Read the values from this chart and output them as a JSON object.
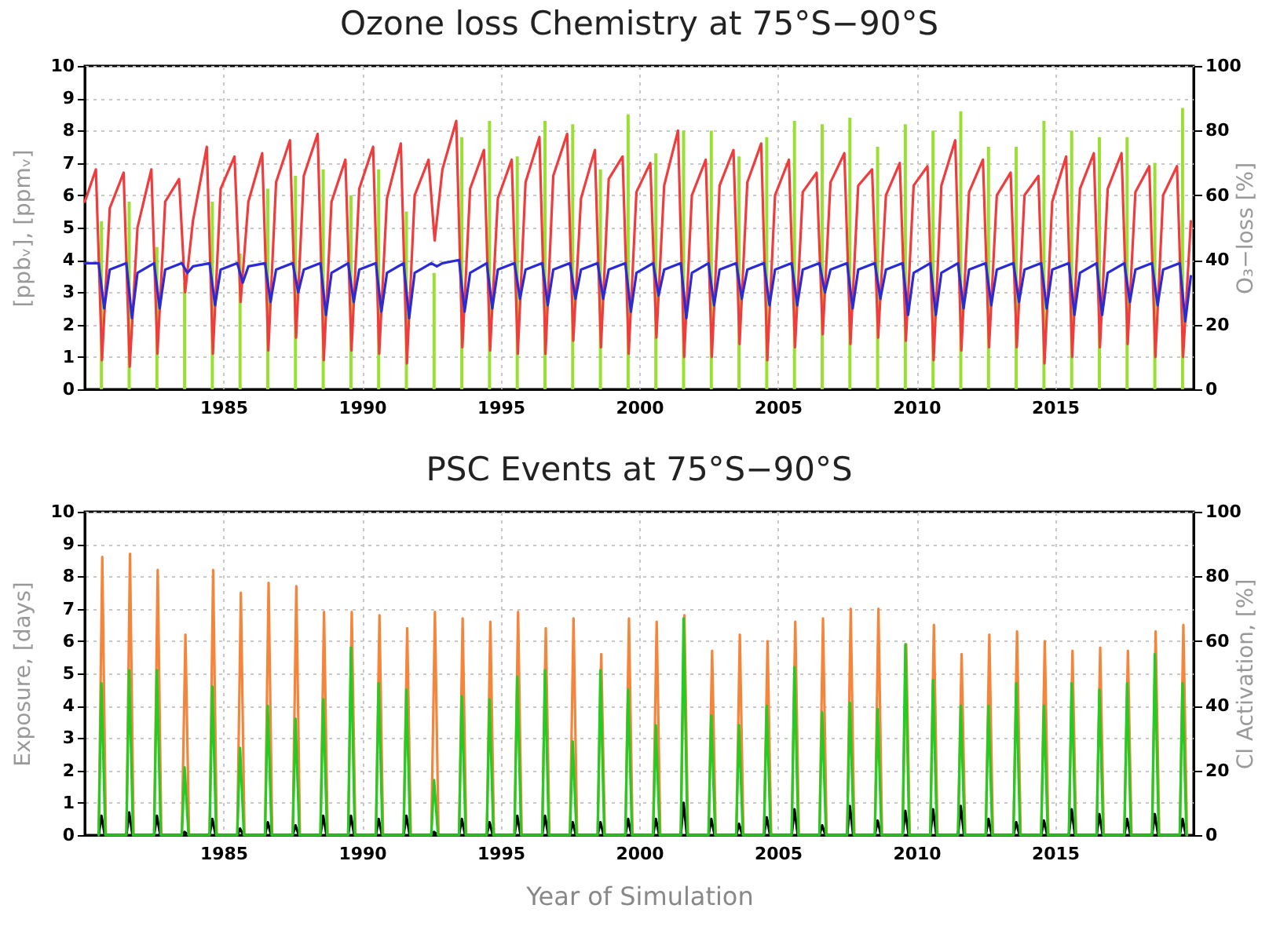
{
  "chart_data": [
    {
      "type": "line",
      "title": "Ozone loss Chemistry at 75°S−90°S",
      "ylabel": "[ppbᵥ], [ppmᵥ]",
      "y2label": "O₃−loss [%]",
      "xlim": [
        1980,
        2020
      ],
      "xticks": [
        1985,
        1990,
        1995,
        2000,
        2005,
        2010,
        2015
      ],
      "ylim": [
        0,
        10
      ],
      "yticks": [
        0,
        1,
        2,
        3,
        4,
        5,
        6,
        7,
        8,
        9,
        10
      ],
      "y2lim": [
        0,
        100
      ],
      "y2ticks": [
        0,
        20,
        40,
        60,
        80,
        100
      ],
      "grid": true,
      "series": [
        {
          "type": "bar",
          "axis": "y2",
          "color": "#99e033",
          "x": [
            1980.6,
            1981.6,
            1982.6,
            1983.6,
            1984.6,
            1985.6,
            1986.6,
            1987.6,
            1988.6,
            1989.6,
            1990.6,
            1991.6,
            1992.6,
            1993.6,
            1994.6,
            1995.6,
            1996.6,
            1997.6,
            1998.6,
            1999.6,
            2000.6,
            2001.6,
            2002.6,
            2003.6,
            2004.6,
            2005.6,
            2006.6,
            2007.6,
            2008.6,
            2009.6,
            2010.6,
            2011.6,
            2012.6,
            2013.6,
            2014.6,
            2015.6,
            2016.6,
            2017.6,
            2018.6,
            2019.6
          ],
          "values": [
            52,
            58,
            44,
            33,
            58,
            42,
            62,
            66,
            68,
            60,
            68,
            55,
            36,
            78,
            83,
            72,
            83,
            82,
            68,
            85,
            73,
            80,
            80,
            72,
            78,
            83,
            82,
            84,
            75,
            82,
            80,
            86,
            75,
            75,
            83,
            80,
            78,
            78,
            70,
            87
          ]
        },
        {
          "color": "#f03c3c",
          "x": [
            1980,
            1980.4,
            1980.62,
            1980.9,
            1981.4,
            1981.62,
            1981.9,
            1982.4,
            1982.62,
            1982.9,
            1983.4,
            1983.62,
            1983.9,
            1984.4,
            1984.62,
            1984.9,
            1985.4,
            1985.62,
            1985.9,
            1986.4,
            1986.62,
            1986.9,
            1987.4,
            1987.62,
            1987.9,
            1988.4,
            1988.62,
            1988.9,
            1989.4,
            1989.62,
            1989.9,
            1990.4,
            1990.62,
            1990.9,
            1991.4,
            1991.62,
            1991.9,
            1992.4,
            1992.62,
            1992.9,
            1993.4,
            1993.62,
            1993.9,
            1994.4,
            1994.62,
            1994.9,
            1995.4,
            1995.62,
            1995.9,
            1996.4,
            1996.62,
            1996.9,
            1997.4,
            1997.62,
            1997.9,
            1998.4,
            1998.62,
            1998.9,
            1999.4,
            1999.62,
            1999.9,
            2000.4,
            2000.62,
            2000.9,
            2001.4,
            2001.62,
            2001.9,
            2002.4,
            2002.62,
            2002.9,
            2003.4,
            2003.62,
            2003.9,
            2004.4,
            2004.62,
            2004.9,
            2005.4,
            2005.62,
            2005.9,
            2006.4,
            2006.62,
            2006.9,
            2007.4,
            2007.62,
            2007.9,
            2008.4,
            2008.62,
            2008.9,
            2009.4,
            2009.62,
            2009.9,
            2010.4,
            2010.62,
            2010.9,
            2011.4,
            2011.62,
            2011.9,
            2012.4,
            2012.62,
            2012.9,
            2013.4,
            2013.62,
            2013.9,
            2014.4,
            2014.62,
            2014.9,
            2015.4,
            2015.62,
            2015.9,
            2016.4,
            2016.62,
            2016.9,
            2017.4,
            2017.62,
            2017.9,
            2018.4,
            2018.62,
            2018.9,
            2019.4,
            2019.62,
            2019.9
          ],
          "values": [
            5.8,
            6.8,
            0.9,
            5.6,
            6.7,
            0.7,
            5.0,
            6.8,
            1.1,
            5.8,
            6.5,
            3.0,
            5.2,
            7.5,
            1.1,
            6.2,
            7.2,
            2.7,
            5.8,
            7.3,
            1.2,
            6.4,
            7.7,
            1.6,
            6.6,
            7.9,
            0.9,
            5.8,
            7.1,
            1.2,
            6.2,
            7.5,
            1.1,
            5.9,
            7.6,
            0.8,
            6.0,
            7.1,
            4.6,
            6.8,
            8.3,
            1.3,
            6.2,
            7.4,
            1.2,
            5.9,
            7.1,
            1.1,
            6.4,
            7.8,
            1.1,
            6.6,
            7.9,
            1.5,
            5.9,
            7.4,
            1.3,
            6.5,
            7.2,
            1.1,
            6.1,
            7.0,
            1.6,
            6.3,
            8.0,
            1.0,
            6.0,
            7.1,
            1.0,
            6.3,
            7.4,
            1.4,
            6.4,
            7.6,
            0.9,
            6.0,
            7.1,
            1.3,
            6.1,
            6.7,
            1.7,
            6.4,
            7.3,
            1.4,
            6.3,
            6.8,
            1.6,
            6.0,
            7.0,
            1.5,
            6.3,
            6.9,
            0.9,
            6.3,
            7.7,
            1.2,
            6.1,
            7.1,
            1.3,
            6.0,
            6.7,
            1.3,
            6.0,
            6.6,
            0.8,
            5.8,
            7.2,
            1.0,
            6.2,
            7.3,
            1.3,
            6.2,
            7.3,
            1.4,
            6.1,
            6.9,
            1.0,
            6.0,
            6.9,
            1.0,
            5.2
          ]
        },
        {
          "color": "#2a2ad6",
          "x": [
            1980,
            1980.5,
            1980.7,
            1980.9,
            1981.5,
            1981.7,
            1981.9,
            1982.5,
            1982.7,
            1982.9,
            1983.5,
            1983.7,
            1983.9,
            1984.5,
            1984.7,
            1984.9,
            1985.5,
            1985.7,
            1985.9,
            1986.5,
            1986.7,
            1986.9,
            1987.5,
            1987.7,
            1987.9,
            1988.5,
            1988.7,
            1988.9,
            1989.5,
            1989.7,
            1989.9,
            1990.5,
            1990.7,
            1990.9,
            1991.5,
            1991.7,
            1991.9,
            1992.5,
            1992.7,
            1992.9,
            1993.5,
            1993.7,
            1993.9,
            1994.5,
            1994.7,
            1994.9,
            1995.5,
            1995.7,
            1995.9,
            1996.5,
            1996.7,
            1996.9,
            1997.5,
            1997.7,
            1997.9,
            1998.5,
            1998.7,
            1998.9,
            1999.5,
            1999.7,
            1999.9,
            2000.5,
            2000.7,
            2000.9,
            2001.5,
            2001.7,
            2001.9,
            2002.5,
            2002.7,
            2002.9,
            2003.5,
            2003.7,
            2003.9,
            2004.5,
            2004.7,
            2004.9,
            2005.5,
            2005.7,
            2005.9,
            2006.5,
            2006.7,
            2006.9,
            2007.5,
            2007.7,
            2007.9,
            2008.5,
            2008.7,
            2008.9,
            2009.5,
            2009.7,
            2009.9,
            2010.5,
            2010.7,
            2010.9,
            2011.5,
            2011.7,
            2011.9,
            2012.5,
            2012.7,
            2012.9,
            2013.5,
            2013.7,
            2013.9,
            2014.5,
            2014.7,
            2014.9,
            2015.5,
            2015.7,
            2015.9,
            2016.5,
            2016.7,
            2016.9,
            2017.5,
            2017.7,
            2017.9,
            2018.5,
            2018.7,
            2018.9,
            2019.5,
            2019.7,
            2019.9
          ],
          "values": [
            3.9,
            3.9,
            2.5,
            3.7,
            3.9,
            2.2,
            3.6,
            3.9,
            2.5,
            3.7,
            3.9,
            3.6,
            3.8,
            3.9,
            2.6,
            3.7,
            3.9,
            3.3,
            3.8,
            3.9,
            2.7,
            3.7,
            3.9,
            3.0,
            3.7,
            3.9,
            2.3,
            3.6,
            3.9,
            2.7,
            3.7,
            3.9,
            2.4,
            3.6,
            3.9,
            2.2,
            3.6,
            3.9,
            3.8,
            3.9,
            4.0,
            2.4,
            3.6,
            3.9,
            2.5,
            3.7,
            3.9,
            2.8,
            3.7,
            3.9,
            2.6,
            3.7,
            3.9,
            2.8,
            3.7,
            3.9,
            2.8,
            3.7,
            3.9,
            2.4,
            3.6,
            3.9,
            2.9,
            3.7,
            3.9,
            2.2,
            3.6,
            3.9,
            2.6,
            3.7,
            3.9,
            2.8,
            3.7,
            3.9,
            2.6,
            3.7,
            3.9,
            2.6,
            3.7,
            3.9,
            3.0,
            3.7,
            3.9,
            2.5,
            3.7,
            3.9,
            2.8,
            3.7,
            3.9,
            2.3,
            3.6,
            3.9,
            2.3,
            3.6,
            3.9,
            2.5,
            3.7,
            3.9,
            2.6,
            3.7,
            3.9,
            2.7,
            3.7,
            3.9,
            2.5,
            3.7,
            3.9,
            2.3,
            3.6,
            3.9,
            2.3,
            3.6,
            3.9,
            2.7,
            3.7,
            3.9,
            2.6,
            3.7,
            3.9,
            2.1,
            3.5
          ]
        }
      ]
    },
    {
      "type": "line",
      "title": "PSC Events at 75°S−90°S",
      "xlabel": "Year of Simulation",
      "ylabel": "Exposure, [days]",
      "y2label": "Cl Activation, [%]",
      "xlim": [
        1980,
        2020
      ],
      "xticks": [
        1985,
        1990,
        1995,
        2000,
        2005,
        2010,
        2015
      ],
      "ylim": [
        0,
        10
      ],
      "yticks": [
        0,
        1,
        2,
        3,
        4,
        5,
        6,
        7,
        8,
        9,
        10
      ],
      "y2lim": [
        0,
        100
      ],
      "y2ticks": [
        0,
        20,
        40,
        60,
        80,
        100
      ],
      "grid": true,
      "series": [
        {
          "color": "#f5853a",
          "x": [
            1980.5,
            1980.63,
            1980.76,
            1981.5,
            1981.63,
            1981.76,
            1982.5,
            1982.63,
            1982.76,
            1983.5,
            1983.63,
            1983.76,
            1984.5,
            1984.63,
            1984.76,
            1985.5,
            1985.63,
            1985.76,
            1986.5,
            1986.63,
            1986.76,
            1987.5,
            1987.63,
            1987.76,
            1988.5,
            1988.63,
            1988.76,
            1989.5,
            1989.63,
            1989.76,
            1990.5,
            1990.63,
            1990.76,
            1991.5,
            1991.63,
            1991.76,
            1992.5,
            1992.63,
            1992.76,
            1993.5,
            1993.63,
            1993.76,
            1994.5,
            1994.63,
            1994.76,
            1995.5,
            1995.63,
            1995.76,
            1996.5,
            1996.63,
            1996.76,
            1997.5,
            1997.63,
            1997.76,
            1998.5,
            1998.63,
            1998.76,
            1999.5,
            1999.63,
            1999.76,
            2000.5,
            2000.63,
            2000.76,
            2001.5,
            2001.63,
            2001.76,
            2002.5,
            2002.63,
            2002.76,
            2003.5,
            2003.63,
            2003.76,
            2004.5,
            2004.63,
            2004.76,
            2005.5,
            2005.63,
            2005.76,
            2006.5,
            2006.63,
            2006.76,
            2007.5,
            2007.63,
            2007.76,
            2008.5,
            2008.63,
            2008.76,
            2009.5,
            2009.63,
            2009.76,
            2010.5,
            2010.63,
            2010.76,
            2011.5,
            2011.63,
            2011.76,
            2012.5,
            2012.63,
            2012.76,
            2013.5,
            2013.63,
            2013.76,
            2014.5,
            2014.63,
            2014.76,
            2015.5,
            2015.63,
            2015.76,
            2016.5,
            2016.63,
            2016.76,
            2017.5,
            2017.63,
            2017.76,
            2018.5,
            2018.63,
            2018.76,
            2019.5,
            2019.63,
            2019.76
          ],
          "values": [
            0,
            8.6,
            0,
            0,
            8.7,
            0,
            0,
            8.2,
            0,
            0,
            6.2,
            0,
            0,
            8.2,
            0,
            0,
            7.5,
            0,
            0,
            7.8,
            0,
            0,
            7.7,
            0,
            0,
            6.9,
            0,
            0,
            6.9,
            0,
            0,
            6.8,
            0,
            0,
            6.4,
            0,
            0,
            6.9,
            0,
            0,
            6.7,
            0,
            0,
            6.6,
            0,
            0,
            6.9,
            0,
            0,
            6.4,
            0,
            0,
            6.7,
            0,
            0,
            5.6,
            0,
            0,
            6.7,
            0,
            0,
            6.6,
            0,
            0,
            6.8,
            0,
            0,
            5.7,
            0,
            0,
            6.2,
            0,
            0,
            6.0,
            0,
            0,
            6.6,
            0,
            0,
            6.7,
            0,
            0,
            7.0,
            0,
            0,
            7.0,
            0,
            0,
            5.9,
            0,
            0,
            6.5,
            0,
            0,
            5.6,
            0,
            0,
            6.2,
            0,
            0,
            6.3,
            0,
            0,
            6.0,
            0,
            0,
            5.7,
            0,
            0,
            5.8,
            0,
            0,
            5.7,
            0,
            0,
            6.3,
            0,
            0,
            6.5,
            0
          ]
        },
        {
          "axis": "y2",
          "color": "#22cc22",
          "x": [
            1980.5,
            1980.6,
            1980.74,
            1981.5,
            1981.6,
            1981.74,
            1982.5,
            1982.6,
            1982.74,
            1983.5,
            1983.6,
            1983.74,
            1984.5,
            1984.6,
            1984.74,
            1985.5,
            1985.6,
            1985.74,
            1986.5,
            1986.6,
            1986.74,
            1987.5,
            1987.6,
            1987.74,
            1988.5,
            1988.6,
            1988.74,
            1989.5,
            1989.6,
            1989.74,
            1990.5,
            1990.6,
            1990.74,
            1991.5,
            1991.6,
            1991.74,
            1992.5,
            1992.6,
            1992.74,
            1993.5,
            1993.6,
            1993.74,
            1994.5,
            1994.6,
            1994.74,
            1995.5,
            1995.6,
            1995.74,
            1996.5,
            1996.6,
            1996.74,
            1997.5,
            1997.6,
            1997.74,
            1998.5,
            1998.6,
            1998.74,
            1999.5,
            1999.6,
            1999.74,
            2000.5,
            2000.6,
            2000.74,
            2001.5,
            2001.6,
            2001.74,
            2002.5,
            2002.6,
            2002.74,
            2003.5,
            2003.6,
            2003.74,
            2004.5,
            2004.6,
            2004.74,
            2005.5,
            2005.6,
            2005.74,
            2006.5,
            2006.6,
            2006.74,
            2007.5,
            2007.6,
            2007.74,
            2008.5,
            2008.6,
            2008.74,
            2009.5,
            2009.6,
            2009.74,
            2010.5,
            2010.6,
            2010.74,
            2011.5,
            2011.6,
            2011.74,
            2012.5,
            2012.6,
            2012.74,
            2013.5,
            2013.6,
            2013.74,
            2014.5,
            2014.6,
            2014.74,
            2015.5,
            2015.6,
            2015.74,
            2016.5,
            2016.6,
            2016.74,
            2017.5,
            2017.6,
            2017.74,
            2018.5,
            2018.6,
            2018.74,
            2019.5,
            2019.6,
            2019.74
          ],
          "values": [
            0,
            47,
            0,
            0,
            51,
            0,
            0,
            51,
            0,
            0,
            21,
            0,
            0,
            46,
            0,
            0,
            27,
            0,
            0,
            40,
            0,
            0,
            36,
            0,
            0,
            42,
            0,
            0,
            58,
            0,
            0,
            47,
            0,
            0,
            45,
            0,
            0,
            17,
            0,
            0,
            43,
            0,
            0,
            42,
            0,
            0,
            49,
            0,
            0,
            51,
            0,
            0,
            29,
            0,
            0,
            51,
            0,
            0,
            45,
            0,
            0,
            34,
            0,
            0,
            67,
            0,
            0,
            37,
            0,
            0,
            34,
            0,
            0,
            40,
            0,
            0,
            52,
            0,
            0,
            38,
            0,
            0,
            41,
            0,
            0,
            39,
            0,
            0,
            59,
            0,
            0,
            48,
            0,
            0,
            40,
            0,
            0,
            40,
            0,
            0,
            47,
            0,
            0,
            40,
            0,
            0,
            47,
            0,
            0,
            45,
            0,
            0,
            47,
            0,
            0,
            56,
            0,
            0,
            47,
            0
          ]
        },
        {
          "color": "#000000",
          "x": [
            1980.5,
            1980.6,
            1980.72,
            1981.5,
            1981.6,
            1981.72,
            1982.5,
            1982.6,
            1982.72,
            1983.5,
            1983.6,
            1983.72,
            1984.5,
            1984.6,
            1984.72,
            1985.5,
            1985.6,
            1985.72,
            1986.5,
            1986.6,
            1986.72,
            1987.5,
            1987.6,
            1987.72,
            1988.5,
            1988.6,
            1988.72,
            1989.5,
            1989.6,
            1989.72,
            1990.5,
            1990.6,
            1990.72,
            1991.5,
            1991.6,
            1991.72,
            1992.5,
            1992.6,
            1992.72,
            1993.5,
            1993.6,
            1993.72,
            1994.5,
            1994.6,
            1994.72,
            1995.5,
            1995.6,
            1995.72,
            1996.5,
            1996.6,
            1996.72,
            1997.5,
            1997.6,
            1997.72,
            1998.5,
            1998.6,
            1998.72,
            1999.5,
            1999.6,
            1999.72,
            2000.5,
            2000.6,
            2000.72,
            2001.5,
            2001.6,
            2001.72,
            2002.5,
            2002.6,
            2002.72,
            2003.5,
            2003.6,
            2003.72,
            2004.5,
            2004.6,
            2004.72,
            2005.5,
            2005.6,
            2005.72,
            2006.5,
            2006.6,
            2006.72,
            2007.5,
            2007.6,
            2007.72,
            2008.5,
            2008.6,
            2008.72,
            2009.5,
            2009.6,
            2009.72,
            2010.5,
            2010.6,
            2010.72,
            2011.5,
            2011.6,
            2011.72,
            2012.5,
            2012.6,
            2012.72,
            2013.5,
            2013.6,
            2013.72,
            2014.5,
            2014.6,
            2014.72,
            2015.5,
            2015.6,
            2015.72,
            2016.5,
            2016.6,
            2016.72,
            2017.5,
            2017.6,
            2017.72,
            2018.5,
            2018.6,
            2018.72,
            2019.5,
            2019.6,
            2019.72
          ],
          "values": [
            0,
            0.6,
            0,
            0,
            0.7,
            0,
            0,
            0.6,
            0,
            0,
            0.1,
            0,
            0,
            0.5,
            0,
            0,
            0.2,
            0,
            0,
            0.4,
            0,
            0,
            0.3,
            0,
            0,
            0.6,
            0,
            0,
            0.6,
            0,
            0,
            0.5,
            0,
            0,
            0.6,
            0,
            0,
            0.1,
            0,
            0,
            0.5,
            0,
            0,
            0.4,
            0,
            0,
            0.6,
            0,
            0,
            0.6,
            0,
            0,
            0.4,
            0,
            0,
            0.4,
            0,
            0,
            0.5,
            0,
            0,
            0.5,
            0,
            0,
            1.0,
            0,
            0,
            0.5,
            0,
            0,
            0.35,
            0,
            0,
            0.55,
            0,
            0,
            0.8,
            0,
            0,
            0.3,
            0,
            0,
            0.9,
            0,
            0,
            0.45,
            0,
            0,
            0.75,
            0,
            0,
            0.8,
            0,
            0,
            0.9,
            0,
            0,
            0.5,
            0,
            0,
            0.4,
            0,
            0,
            0.45,
            0,
            0,
            0.8,
            0,
            0,
            0.65,
            0,
            0,
            0.5,
            0,
            0,
            0.65,
            0,
            0,
            0.5,
            0
          ]
        }
      ]
    }
  ]
}
